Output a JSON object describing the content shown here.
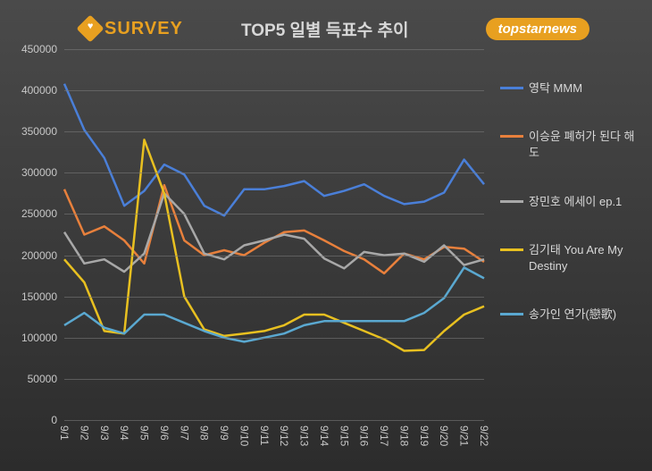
{
  "header": {
    "survey_text": "SURVEY",
    "chart_title": "TOP5 일별 득표수 추이",
    "topstar_text": "topstarnews"
  },
  "chart": {
    "type": "line",
    "background_gradient": [
      "#4a4a4a",
      "#2c2c2c"
    ],
    "grid_color": "rgba(120,120,120,0.6)",
    "text_color": "#c8c8c8",
    "y_axis": {
      "min": 0,
      "max": 450000,
      "step": 50000,
      "ticks": [
        0,
        50000,
        100000,
        150000,
        200000,
        250000,
        300000,
        350000,
        400000,
        450000
      ]
    },
    "x_axis": {
      "categories": [
        "9/1",
        "9/2",
        "9/3",
        "9/4",
        "9/5",
        "9/6",
        "9/7",
        "9/8",
        "9/9",
        "9/10",
        "9/11",
        "9/12",
        "9/13",
        "9/14",
        "9/15",
        "9/16",
        "9/17",
        "9/18",
        "9/19",
        "9/20",
        "9/21",
        "9/22"
      ]
    },
    "series": [
      {
        "name": "영탁 MMM",
        "color": "#4a7fd8",
        "line_width": 2.5,
        "values": [
          408000,
          352000,
          318000,
          260000,
          278000,
          310000,
          298000,
          260000,
          248000,
          280000,
          280000,
          284000,
          290000,
          272000,
          278000,
          286000,
          272000,
          262000,
          265000,
          276000,
          316000,
          286000
        ]
      },
      {
        "name": "이승윤 폐허가 된다 해도",
        "color": "#e8803c",
        "line_width": 2.5,
        "values": [
          280000,
          225000,
          235000,
          218000,
          190000,
          285000,
          218000,
          200000,
          206000,
          200000,
          215000,
          228000,
          230000,
          218000,
          205000,
          195000,
          178000,
          202000,
          195000,
          210000,
          208000,
          192000
        ]
      },
      {
        "name": "장민호 에세이 ep.1",
        "color": "#a8a8a8",
        "line_width": 2.5,
        "values": [
          228000,
          190000,
          195000,
          180000,
          202000,
          275000,
          250000,
          202000,
          195000,
          212000,
          218000,
          225000,
          220000,
          196000,
          184000,
          204000,
          200000,
          202000,
          192000,
          212000,
          188000,
          195000
        ]
      },
      {
        "name": "김기태 You Are My Destiny",
        "color": "#e8c020",
        "line_width": 2.5,
        "values": [
          195000,
          167000,
          108000,
          105000,
          340000,
          275000,
          150000,
          110000,
          102000,
          105000,
          108000,
          115000,
          128000,
          128000,
          118000,
          108000,
          98000,
          84000,
          85000,
          108000,
          128000,
          138000
        ]
      },
      {
        "name": "송가인 연가(戀歌)",
        "color": "#5aa8d0",
        "line_width": 2.5,
        "values": [
          115000,
          130000,
          112000,
          105000,
          128000,
          128000,
          118000,
          108000,
          100000,
          95000,
          100000,
          105000,
          115000,
          120000,
          120000,
          120000,
          120000,
          120000,
          130000,
          148000,
          185000,
          172000
        ]
      }
    ],
    "legend": {
      "position": "right",
      "font_size": 13,
      "label_color": "#d8d8d8"
    }
  }
}
